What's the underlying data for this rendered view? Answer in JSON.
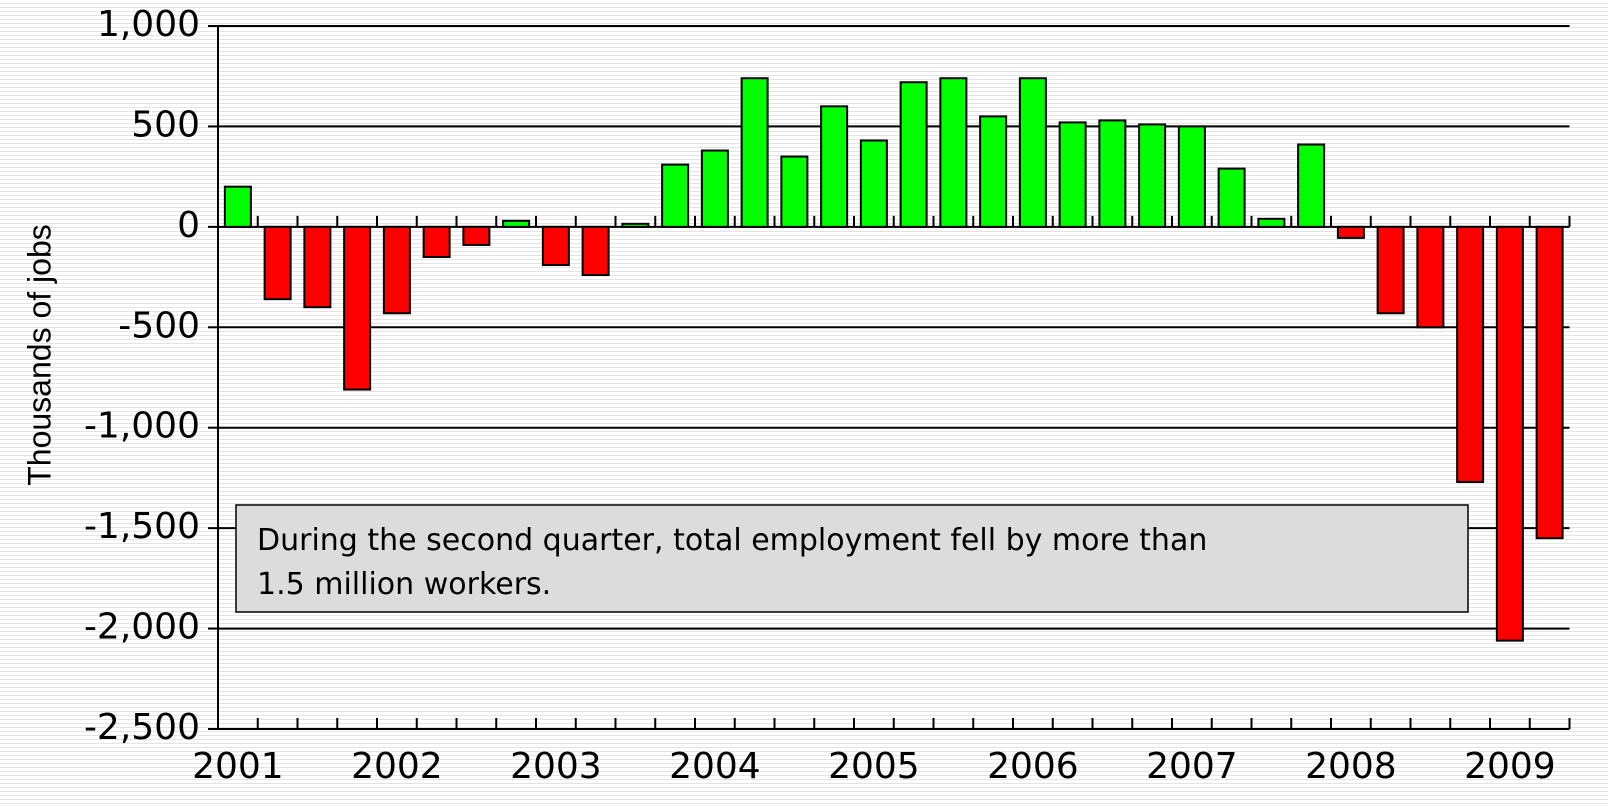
{
  "chart_data": {
    "type": "bar",
    "y_label": "Thousands of jobs",
    "annotation": [
      "During the second quarter, total employment fell by more than",
      "1.5 million workers."
    ],
    "categories": [
      "2001",
      null,
      null,
      null,
      "2002",
      null,
      null,
      null,
      "2003",
      null,
      null,
      null,
      "2004",
      null,
      null,
      null,
      "2005",
      null,
      null,
      null,
      "2006",
      null,
      null,
      null,
      "2007",
      null,
      null,
      null,
      "2008",
      null,
      null,
      null,
      "2009",
      null
    ],
    "values": [
      200,
      -360,
      -400,
      -810,
      -430,
      -150,
      -90,
      30,
      -190,
      -240,
      15,
      310,
      380,
      740,
      350,
      600,
      430,
      720,
      740,
      550,
      740,
      520,
      530,
      510,
      500,
      290,
      40,
      410,
      -55,
      -430,
      -500,
      -1270,
      -2060,
      -1550
    ],
    "color_positive": "#00ff00",
    "color_negative": "#ff0000",
    "ylim": [
      -2500,
      1000
    ],
    "yticks": [
      {
        "value": 1000,
        "label": "1,000"
      },
      500,
      0,
      -500,
      {
        "value": -1000,
        "label": "-1,000"
      },
      {
        "value": -1500,
        "label": "-1,500"
      },
      {
        "value": -2000,
        "label": "-2,000"
      },
      {
        "value": -2500,
        "label": "-2,500"
      }
    ],
    "grid": true
  }
}
